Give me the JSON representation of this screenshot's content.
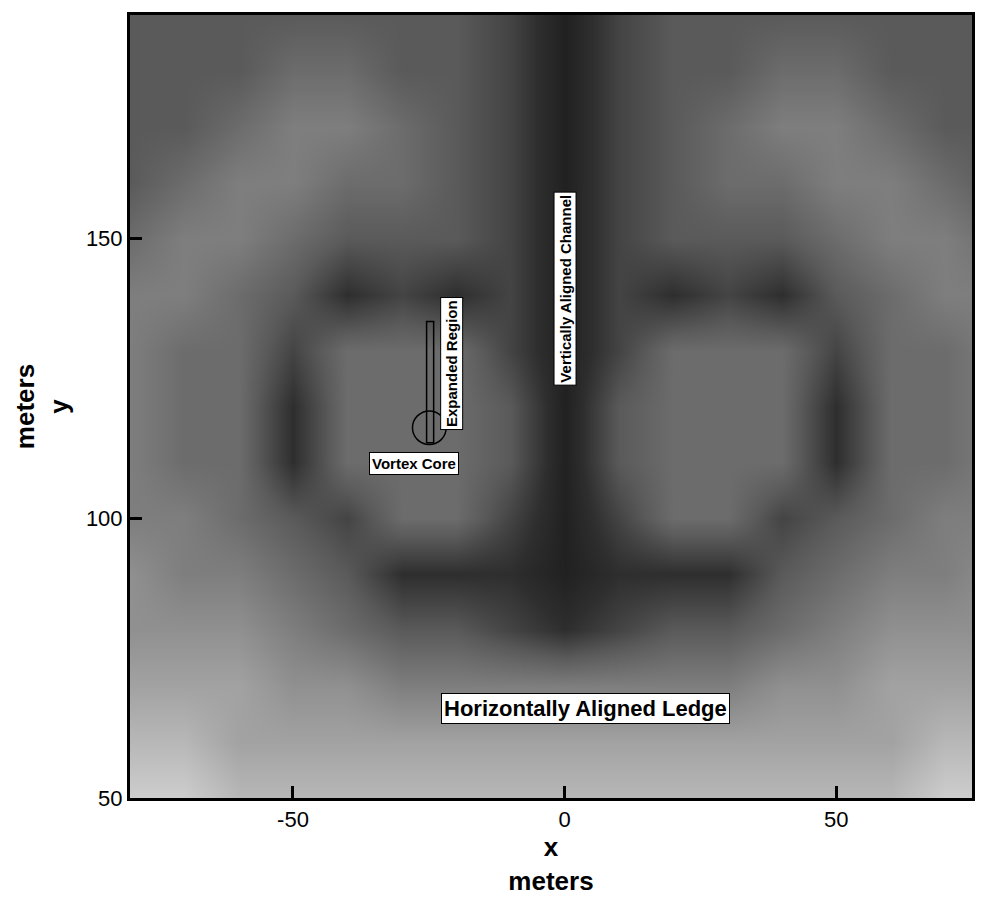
{
  "chart_data": {
    "type": "heatmap",
    "xlabel": "x\nmeters",
    "ylabel": "meters\ny",
    "xlim": [
      -80,
      75
    ],
    "ylim": [
      50,
      190
    ],
    "xticks": [
      -50,
      0,
      50
    ],
    "yticks": [
      50,
      100,
      150
    ],
    "tick_labels": true,
    "grid": false,
    "x": [
      -80,
      -70,
      -60,
      -50,
      -40,
      -30,
      -20,
      -10,
      0,
      10,
      20,
      30,
      40,
      50,
      60,
      70,
      80
    ],
    "y": [
      50,
      60,
      70,
      80,
      90,
      100,
      110,
      120,
      130,
      140,
      150,
      160,
      170,
      180,
      190
    ],
    "z": [
      [
        10,
        10,
        9,
        9,
        9,
        9,
        9,
        9,
        9,
        9,
        9,
        9,
        9,
        9,
        9,
        10,
        10
      ],
      [
        9,
        9,
        8,
        8,
        8,
        8,
        8,
        8,
        8,
        8,
        8,
        8,
        8,
        8,
        8,
        9,
        9
      ],
      [
        8,
        8,
        8,
        7,
        7,
        6,
        6,
        6,
        6,
        6,
        6,
        6,
        7,
        7,
        8,
        8,
        8
      ],
      [
        7,
        7,
        7,
        6,
        5,
        4,
        4,
        3,
        2,
        3,
        4,
        4,
        5,
        6,
        7,
        7,
        7
      ],
      [
        7,
        6,
        6,
        5,
        4,
        2,
        2,
        2,
        1,
        2,
        2,
        2,
        4,
        5,
        6,
        6,
        7
      ],
      [
        6,
        6,
        5,
        4,
        3,
        5,
        5,
        3,
        1,
        3,
        5,
        5,
        3,
        4,
        5,
        6,
        6
      ],
      [
        6,
        5,
        5,
        2,
        5,
        5,
        5,
        4,
        1,
        4,
        5,
        5,
        5,
        2,
        5,
        5,
        6
      ],
      [
        6,
        5,
        5,
        2,
        5,
        5,
        5,
        4,
        1,
        4,
        5,
        5,
        5,
        2,
        5,
        5,
        6
      ],
      [
        6,
        5,
        5,
        3,
        5,
        5,
        5,
        3,
        1,
        3,
        5,
        5,
        5,
        3,
        5,
        5,
        6
      ],
      [
        6,
        6,
        5,
        4,
        2,
        3,
        2,
        3,
        1,
        3,
        2,
        3,
        2,
        4,
        5,
        6,
        6
      ],
      [
        5,
        6,
        6,
        5,
        4,
        4,
        4,
        3,
        1,
        3,
        4,
        4,
        4,
        5,
        6,
        6,
        5
      ],
      [
        4,
        5,
        6,
        6,
        5,
        5,
        4,
        3,
        1,
        3,
        4,
        5,
        5,
        6,
        6,
        5,
        4
      ],
      [
        4,
        4,
        5,
        6,
        6,
        5,
        4,
        3,
        1,
        3,
        4,
        5,
        6,
        6,
        5,
        4,
        4
      ],
      [
        4,
        4,
        4,
        5,
        5,
        4,
        4,
        3,
        1,
        3,
        4,
        4,
        5,
        5,
        4,
        4,
        4
      ],
      [
        4,
        4,
        4,
        4,
        4,
        4,
        4,
        3,
        1,
        3,
        4,
        4,
        4,
        4,
        4,
        4,
        4
      ]
    ],
    "zlim": [
      0,
      10
    ],
    "annotations": [
      {
        "text": "Vortex Core",
        "x": -27.8,
        "y": 109.8
      },
      {
        "text": "Horizontally Aligned Ledge",
        "x": 3.8,
        "y": 66
      }
    ],
    "vertical_annotations": [
      {
        "text": "Expanded Region",
        "x": -20.8,
        "y": 127.7
      },
      {
        "text": "Vertically Aligned Channel",
        "x": 0,
        "y": 141
      }
    ],
    "regions": [
      {
        "shape": "circle",
        "x": [
          -28,
          -21.8
        ],
        "y": [
          113.2,
          119.2
        ]
      },
      {
        "shape": "rect",
        "x": [
          -25.4,
          -24.1
        ],
        "y": [
          113.5,
          135.2
        ]
      }
    ]
  }
}
